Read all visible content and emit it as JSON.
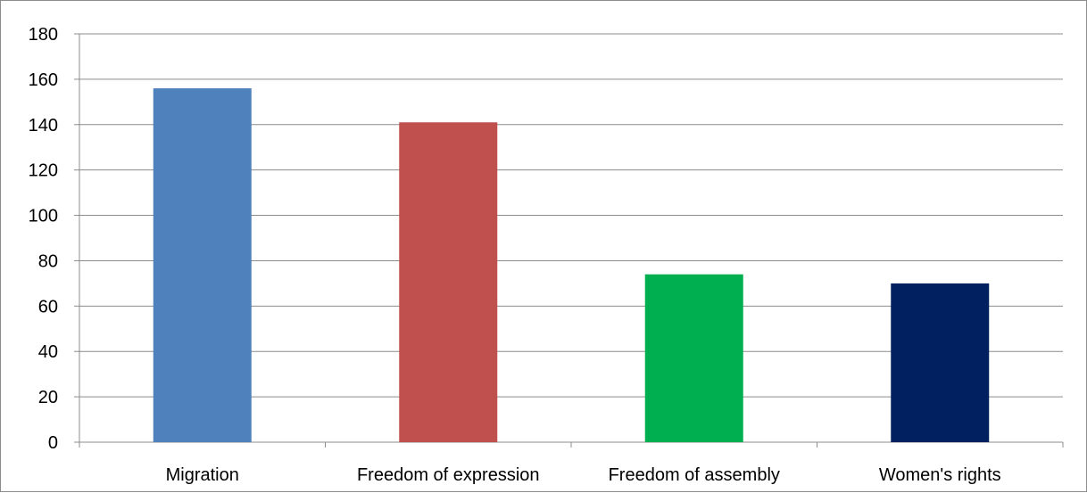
{
  "chart_data": {
    "type": "bar",
    "categories": [
      "Migration",
      "Freedom of expression",
      "Freedom of assembly",
      "Women's rights"
    ],
    "values": [
      156,
      141,
      74,
      70
    ],
    "colors": [
      "#4f81bd",
      "#c0504d",
      "#00b050",
      "#002060"
    ],
    "ylim": [
      0,
      180
    ],
    "yticks": [
      0,
      20,
      40,
      60,
      80,
      100,
      120,
      140,
      160,
      180
    ],
    "grid": true,
    "legend": "none"
  }
}
